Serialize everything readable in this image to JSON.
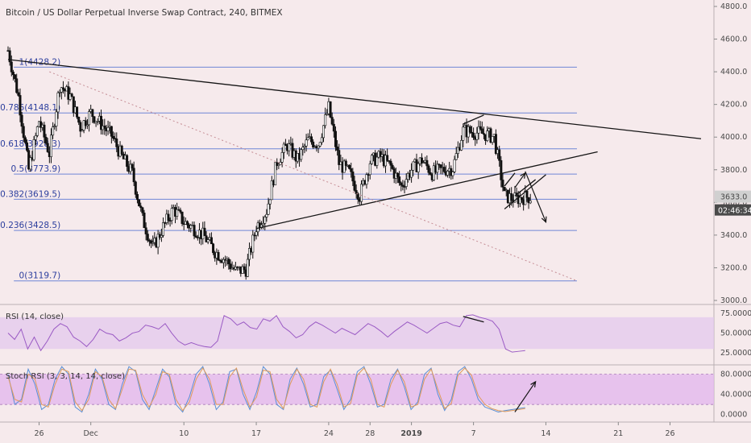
{
  "header": {
    "title": "Bitcoin / US Dollar Perpetual Inverse Swap Contract, 240, BITMEX"
  },
  "chart_data": [
    {
      "type": "candlestick",
      "title": "Bitcoin / US Dollar Perpetual Inverse Swap Contract, 240, BITMEX",
      "x_dates": [
        "Nov 23",
        "Jan 29"
      ],
      "ylim": [
        3000,
        4800
      ],
      "y_ticks": [
        3000,
        3200,
        3400,
        3600,
        3800,
        4000,
        4200,
        4400,
        4600,
        4800
      ],
      "y_tick_labels": [
        "3000.0",
        "3200.0",
        "3400.0",
        "3600.0",
        "3800.0",
        "4000.0",
        "4200.0",
        "4400.0",
        "4600.0",
        "4800.0"
      ],
      "x_tick_labels": [
        {
          "label": "26",
          "date": "Nov 26"
        },
        {
          "label": "Dec",
          "date": "Dec 1"
        },
        {
          "label": "10",
          "date": "Dec 10"
        },
        {
          "label": "17",
          "date": "Dec 17"
        },
        {
          "label": "24",
          "date": "Dec 24"
        },
        {
          "label": "28",
          "date": "Dec 28"
        },
        {
          "label": "2019",
          "date": "Jan 1"
        },
        {
          "label": "7",
          "date": "Jan 7"
        },
        {
          "label": "14",
          "date": "Jan 14"
        },
        {
          "label": "21",
          "date": "Jan 21"
        },
        {
          "label": "26",
          "date": "Jan 26"
        }
      ],
      "price_anchors": [
        {
          "date": "Nov 23",
          "price": 4530
        },
        {
          "date": "Nov 24",
          "price": 4250
        },
        {
          "date": "Nov 25",
          "price": 3800
        },
        {
          "date": "Nov 26",
          "price": 4100
        },
        {
          "date": "Nov 27",
          "price": 3900
        },
        {
          "date": "Nov 28",
          "price": 4320
        },
        {
          "date": "Nov 29",
          "price": 4250
        },
        {
          "date": "Nov 30",
          "price": 4060
        },
        {
          "date": "Dec 1",
          "price": 4150
        },
        {
          "date": "Dec 3",
          "price": 4010
        },
        {
          "date": "Dec 4",
          "price": 3880
        },
        {
          "date": "Dec 5",
          "price": 3780
        },
        {
          "date": "Dec 6",
          "price": 3500
        },
        {
          "date": "Dec 7",
          "price": 3320
        },
        {
          "date": "Dec 8",
          "price": 3450
        },
        {
          "date": "Dec 9",
          "price": 3560
        },
        {
          "date": "Dec 10",
          "price": 3480
        },
        {
          "date": "Dec 11",
          "price": 3440
        },
        {
          "date": "Dec 12",
          "price": 3390
        },
        {
          "date": "Dec 13",
          "price": 3300
        },
        {
          "date": "Dec 14",
          "price": 3250
        },
        {
          "date": "Dec 15",
          "price": 3180
        },
        {
          "date": "Dec 16",
          "price": 3190
        },
        {
          "date": "Dec 17",
          "price": 3450
        },
        {
          "date": "Dec 18",
          "price": 3550
        },
        {
          "date": "Dec 19",
          "price": 3850
        },
        {
          "date": "Dec 20",
          "price": 3950
        },
        {
          "date": "Dec 21",
          "price": 3860
        },
        {
          "date": "Dec 22",
          "price": 3980
        },
        {
          "date": "Dec 23",
          "price": 3960
        },
        {
          "date": "Dec 24",
          "price": 4180
        },
        {
          "date": "Dec 25",
          "price": 3840
        },
        {
          "date": "Dec 26",
          "price": 3780
        },
        {
          "date": "Dec 27",
          "price": 3640
        },
        {
          "date": "Dec 28",
          "price": 3850
        },
        {
          "date": "Dec 29",
          "price": 3880
        },
        {
          "date": "Dec 30",
          "price": 3820
        },
        {
          "date": "Dec 31",
          "price": 3700
        },
        {
          "date": "Jan 1",
          "price": 3800
        },
        {
          "date": "Jan 2",
          "price": 3860
        },
        {
          "date": "Jan 3",
          "price": 3780
        },
        {
          "date": "Jan 4",
          "price": 3800
        },
        {
          "date": "Jan 5",
          "price": 3810
        },
        {
          "date": "Jan 6",
          "price": 4040
        },
        {
          "date": "Jan 7",
          "price": 4030
        },
        {
          "date": "Jan 8",
          "price": 4020
        },
        {
          "date": "Jan 9",
          "price": 4000
        },
        {
          "date": "Jan 10",
          "price": 3640
        },
        {
          "date": "Jan 11",
          "price": 3620
        },
        {
          "date": "Jan 12",
          "price": 3633
        }
      ],
      "fib_levels": [
        {
          "label": "1(4428.2)",
          "value": 4428.2
        },
        {
          "label": "0.786(4148.1)",
          "value": 4148.1
        },
        {
          "label": "0.618(3928.3)",
          "value": 3928.3
        },
        {
          "label": "0.5(3773.9)",
          "value": 3773.9
        },
        {
          "label": "0.382(3619.5)",
          "value": 3619.5
        },
        {
          "label": "0.236(3428.5)",
          "value": 3428.5
        },
        {
          "label": "0(3119.7)",
          "value": 3119.7
        }
      ],
      "fib_range_end": "Jan 17",
      "trendlines": [
        {
          "name": "descending-resistance",
          "from": {
            "date": "Nov 23",
            "price": 4475
          },
          "to": {
            "date": "Jan 29",
            "price": 3990
          }
        },
        {
          "name": "ascending-support",
          "from": {
            "date": "Dec 17",
            "price": 3440
          },
          "to": {
            "date": "Jan 19",
            "price": 3910
          }
        },
        {
          "name": "dotted-diagonal",
          "from": {
            "date": "Nov 27",
            "price": 4400
          },
          "to": {
            "date": "Jan 17",
            "price": 3120
          }
        },
        {
          "name": "wedge-top",
          "from": {
            "date": "Jan 6",
            "price": 4080
          },
          "to": {
            "date": "Jan 8",
            "price": 4135
          }
        },
        {
          "name": "flag-lower",
          "from": {
            "date": "Jan 10",
            "price": 3560
          },
          "to": {
            "date": "Jan 14",
            "price": 3770
          }
        },
        {
          "name": "flag-upper",
          "from": {
            "date": "Jan 11",
            "price": 3640
          },
          "to": {
            "date": "Jan 13",
            "price": 3740
          }
        },
        {
          "name": "channel-top",
          "from": {
            "date": "Jan 10",
            "price": 3700
          },
          "to": {
            "date": "Jan 11",
            "price": 3780
          }
        }
      ],
      "arrows": [
        {
          "name": "up-arrow",
          "from": {
            "date": "Jan 11",
            "price": 3690
          },
          "to": {
            "date": "Jan 12",
            "price": 3780
          }
        },
        {
          "name": "down-arrow",
          "from": {
            "date": "Jan 12",
            "price": 3790
          },
          "to": {
            "date": "Jan 14",
            "price": 3480
          }
        }
      ],
      "last_price_label": "3633.0",
      "countdown_label": "02:46:34"
    },
    {
      "type": "line",
      "title": "RSI (14, close)",
      "ylim": [
        15,
        80
      ],
      "band": [
        30,
        70
      ],
      "y_ticks": [
        25,
        50,
        75
      ],
      "y_tick_labels": [
        "25.0000",
        "50.0000",
        "75.0000"
      ],
      "series": [
        {
          "values": [
            50,
            42,
            55,
            30,
            45,
            28,
            40,
            55,
            62,
            58,
            45,
            40,
            33,
            42,
            55,
            50,
            48,
            40,
            44,
            50,
            52,
            60,
            58,
            55,
            62,
            50,
            40,
            35,
            38,
            35,
            33,
            32,
            40,
            72,
            68,
            60,
            64,
            57,
            55,
            68,
            65,
            72,
            58,
            52,
            44,
            48,
            58,
            64,
            60,
            55,
            50,
            56,
            52,
            48,
            55,
            62,
            58,
            52,
            45,
            52,
            58,
            64,
            60,
            55,
            50,
            56,
            62,
            64,
            60,
            58,
            72,
            73,
            70,
            68,
            65,
            55,
            30,
            26,
            27,
            28
          ]
        }
      ],
      "trendlines": [
        {
          "from": {
            "date": "Jan 6",
            "value": 71
          },
          "to": {
            "date": "Jan 8",
            "value": 64
          }
        }
      ]
    },
    {
      "type": "line",
      "title": "Stoch RSI (3, 3, 14, 14, close)",
      "ylim": [
        -10,
        92
      ],
      "band": [
        20,
        80
      ],
      "y_ticks": [
        0,
        40,
        80
      ],
      "y_tick_labels": [
        "0.0000",
        "40.0000",
        "80.0000"
      ],
      "series": [
        {
          "values": [
            80,
            20,
            30,
            90,
            60,
            10,
            20,
            70,
            95,
            80,
            15,
            5,
            40,
            90,
            70,
            20,
            10,
            60,
            95,
            85,
            30,
            10,
            50,
            90,
            75,
            20,
            5,
            35,
            80,
            95,
            60,
            10,
            25,
            85,
            90,
            40,
            10,
            45,
            95,
            80,
            20,
            10,
            70,
            92,
            60,
            15,
            20,
            75,
            88,
            50,
            10,
            30,
            85,
            95,
            60,
            15,
            20,
            70,
            90,
            55,
            10,
            25,
            80,
            92,
            40,
            8,
            30,
            85,
            95,
            70,
            30,
            15,
            10,
            5,
            8,
            10,
            12,
            14
          ]
        },
        {
          "values": [
            75,
            30,
            25,
            80,
            70,
            20,
            15,
            60,
            90,
            85,
            25,
            8,
            30,
            85,
            75,
            30,
            12,
            50,
            90,
            88,
            40,
            15,
            40,
            85,
            80,
            30,
            8,
            25,
            70,
            92,
            70,
            20,
            20,
            75,
            92,
            50,
            15,
            35,
            88,
            85,
            30,
            12,
            60,
            90,
            70,
            20,
            15,
            65,
            90,
            60,
            15,
            22,
            78,
            92,
            70,
            20,
            15,
            60,
            88,
            65,
            15,
            20,
            70,
            90,
            50,
            12,
            22,
            78,
            92,
            78,
            38,
            20,
            12,
            8,
            6,
            8,
            10,
            12
          ]
        }
      ],
      "annotation_arrow": {
        "from": {
          "date": "Jan 11",
          "value": 5
        },
        "to": {
          "date": "Jan 13",
          "value": 65
        }
      }
    }
  ],
  "rsi_panel": {
    "title": "RSI (14, close)"
  },
  "stoch_panel": {
    "title": "Stoch RSI (3, 3, 14, 14, close)"
  },
  "colors": {
    "background": "#f6eaec",
    "candle": "#111111",
    "fib_line": "#6f86d6",
    "fib_text": "#2d3f9e",
    "rsi_line": "#9a5ac4",
    "rsi_band": "#e3c8ee",
    "stoch_band": "#e4b8ee",
    "stoch_k": "#5a8fd6",
    "stoch_d": "#e09a5a",
    "price_label_bg": "#d0d0d0",
    "countdown_bg": "#4a4a4a"
  }
}
